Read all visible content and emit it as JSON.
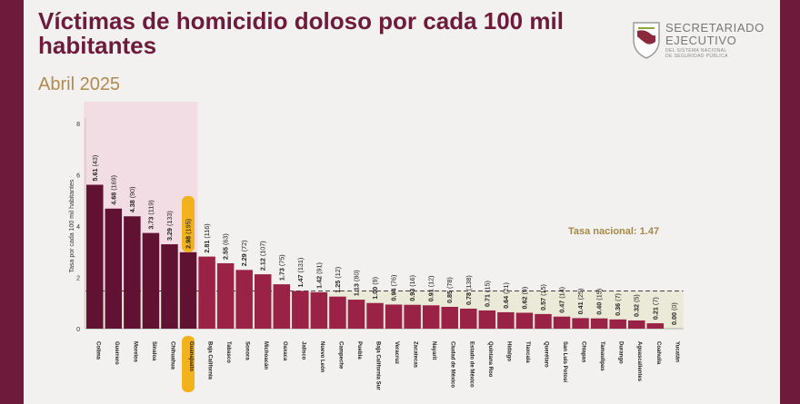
{
  "title": "Víctimas de homicidio doloso por cada 100 mil habitantes",
  "subtitle": "Abril 2025",
  "logo": {
    "line1": "SECRETARIADO",
    "line2": "EJECUTIVO",
    "line3": "DEL SISTEMA NACIONAL",
    "line4": "DE SEGURIDAD PÚBLICA",
    "icon": "shield-map-logo"
  },
  "national": {
    "label": "Tasa nacional: 1.47",
    "value": 1.47
  },
  "colors": {
    "top5": "#611232",
    "default": "#9b2247",
    "highlight_badge": "#f2b21c",
    "highlight_region": "#f2dde5",
    "national_band": "#ebead9",
    "national_label": "#a68847",
    "frame": "#6d1a3b"
  },
  "chart_data": {
    "type": "bar",
    "title": "Víctimas de homicidio doloso por cada 100 mil habitantes",
    "ylabel": "Tasa por cada 100 mil habitantes",
    "xlabel": "",
    "ylim": [
      0,
      8
    ],
    "yticks": [
      0,
      2,
      4,
      6,
      8
    ],
    "national_rate": 1.47,
    "highlighted_category": "Guanajuato",
    "top_group_count": 6,
    "categories": [
      "Colima",
      "Guerrero",
      "Morelos",
      "Sinaloa",
      "Chihuahua",
      "Guanajuato",
      "Baja California",
      "Tabasco",
      "Sonora",
      "Michoacán",
      "Oaxaca",
      "Jalisco",
      "Nuevo León",
      "Campeche",
      "Puebla",
      "Baja California Sur",
      "Veracruz",
      "Zacatecas",
      "Nayarit",
      "Ciudad de México",
      "Estado de México",
      "Quintana Roo",
      "Hidalgo",
      "Tlaxcala",
      "Querétaro",
      "San Luis Potosí",
      "Chiapas",
      "Tamaulipas",
      "Durango",
      "Aguascalientes",
      "Coahuila",
      "Yucatán"
    ],
    "values": [
      5.61,
      4.68,
      4.38,
      3.73,
      3.29,
      2.98,
      2.81,
      2.55,
      2.29,
      2.12,
      1.73,
      1.47,
      1.42,
      1.25,
      1.13,
      1.0,
      0.94,
      0.93,
      0.91,
      0.85,
      0.78,
      0.71,
      0.64,
      0.62,
      0.57,
      0.47,
      0.41,
      0.4,
      0.36,
      0.32,
      0.21,
      0.0
    ],
    "data_labels": [
      "5.61 (43)",
      "4.68 (169)",
      "4.38 (90)",
      "3.73 (119)",
      "3.29 (133)",
      "2.98 (195)",
      "2.81 (116)",
      "2.55 (63)",
      "2.29 (72)",
      "2.12 (107)",
      "1.73 (75)",
      "1.47 (131)",
      "1.42 (91)",
      "1.25 (12)",
      "1.13 (80)",
      "1.00 (9)",
      "0.94 (76)",
      "0.93 (16)",
      "0.91 (12)",
      "0.85 (78)",
      "0.78 (138)",
      "0.71 (15)",
      "0.64 (21)",
      "0.62 (9)",
      "0.57 (15)",
      "0.47 (14)",
      "0.41 (25)",
      "0.40 (15)",
      "0.36 (7)",
      "0.32 (5)",
      "0.21 (7)",
      "0.00 (0)"
    ]
  }
}
